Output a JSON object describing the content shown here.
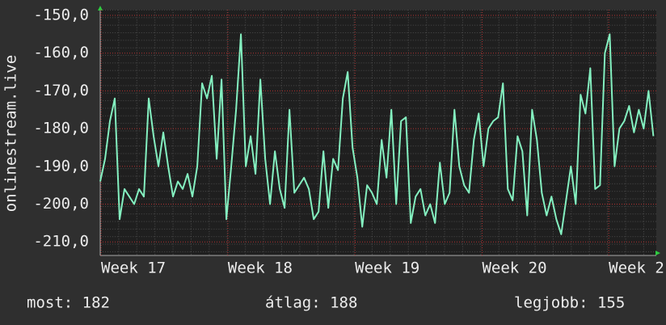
{
  "chart_data": {
    "type": "line",
    "y_label": "onlinestream.live",
    "x": [
      0,
      1,
      2,
      3,
      4,
      5,
      6,
      7,
      8,
      9,
      10,
      11,
      12,
      13,
      14,
      15,
      16,
      17,
      18,
      19,
      20,
      21,
      22,
      23,
      24,
      25,
      26,
      27,
      28,
      29,
      30,
      31,
      32,
      33,
      34,
      35,
      36,
      37,
      38,
      39,
      40,
      41,
      42,
      43,
      44,
      45,
      46,
      47,
      48,
      49,
      50,
      51,
      52,
      53,
      54,
      55,
      56,
      57,
      58,
      59,
      60,
      61,
      62,
      63,
      64,
      65,
      66,
      67,
      68,
      69,
      70,
      71,
      72,
      73,
      74,
      75,
      76,
      77,
      78,
      79,
      80,
      81,
      82,
      83,
      84,
      85,
      86,
      87,
      88,
      89,
      90,
      91,
      92,
      93,
      94,
      95,
      96,
      97,
      98,
      99,
      100,
      101,
      102,
      103,
      104,
      105,
      106,
      107,
      108,
      109,
      110,
      111,
      112,
      113,
      114
    ],
    "series": [
      {
        "color": "#84f0c0",
        "values": [
          -194,
          -188,
          -178,
          -172,
          -204,
          -196,
          -198,
          -200,
          -196,
          -198,
          -172,
          -182,
          -190,
          -181,
          -190,
          -198,
          -194,
          -196,
          -192,
          -198,
          -190,
          -168,
          -172,
          -166,
          -188,
          -167,
          -204,
          -190,
          -175,
          -155,
          -190,
          -182,
          -192,
          -167,
          -188,
          -200,
          -186,
          -196,
          -201,
          -175,
          -197,
          -195,
          -193,
          -196,
          -204,
          -202,
          -186,
          -201,
          -188,
          -191,
          -172,
          -165,
          -185,
          -193,
          -206,
          -195,
          -197,
          -200,
          -183,
          -193,
          -175,
          -200,
          -178,
          -177,
          -205,
          -198,
          -196,
          -203,
          -200,
          -205,
          -189,
          -200,
          -197,
          -175,
          -190,
          -195,
          -197,
          -183,
          -176,
          -190,
          -180,
          -178,
          -177,
          -168,
          -196,
          -199,
          -182,
          -186,
          -203,
          -175,
          -183,
          -197,
          -203,
          -198,
          -204,
          -208,
          -199,
          -190,
          -200,
          -171,
          -176,
          -164,
          -196,
          -195,
          -160,
          -155,
          -190,
          -180,
          -178,
          -174,
          -181,
          -175,
          -180,
          -170,
          -182
        ]
      }
    ],
    "xlim": [
      0,
      114.6
    ],
    "xticks": [
      {
        "value": 0.17,
        "label": "Week 17"
      },
      {
        "value": 26.3,
        "label": "Week 18"
      },
      {
        "value": 52.5,
        "label": "Week 19"
      },
      {
        "value": 78.7,
        "label": "Week 20"
      },
      {
        "value": 104.8,
        "label": "Week 2"
      }
    ],
    "ylim": [
      -213.6,
      -148.5
    ],
    "yticks": [
      {
        "value": -150,
        "label": "-150,0"
      },
      {
        "value": -160,
        "label": "-160,0"
      },
      {
        "value": -170,
        "label": "-170,0"
      },
      {
        "value": -180,
        "label": "-180,0"
      },
      {
        "value": -190,
        "label": "-190,0"
      },
      {
        "value": -200,
        "label": "-200,0"
      },
      {
        "value": -210,
        "label": "-210,0"
      }
    ],
    "grid": true,
    "summary": [
      "most: 182",
      "átlag: 188",
      "legjobb: 155"
    ]
  }
}
